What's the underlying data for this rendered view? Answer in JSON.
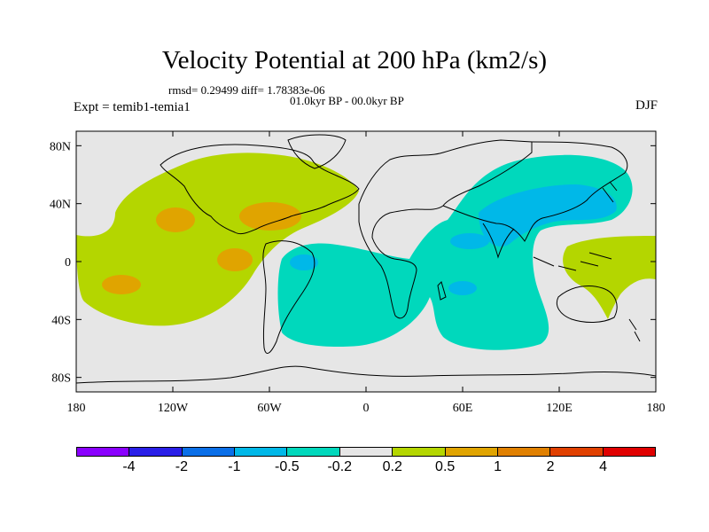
{
  "title": "Velocity Potential at 200 hPa (km2/s)",
  "stats_line": "rmsd= 0.29499 diff= 1.78383e-06",
  "period_line": "01.0kyr BP - 00.0kyr BP",
  "experiment_label": "Expt = temib1-temia1",
  "season_label": "DJF",
  "map": {
    "lon_range": [
      -180,
      180
    ],
    "lat_range": [
      -90,
      90
    ],
    "x_ticks": [
      {
        "lon": -180,
        "label": "180"
      },
      {
        "lon": -120,
        "label": "120W"
      },
      {
        "lon": -60,
        "label": "60W"
      },
      {
        "lon": 0,
        "label": "0"
      },
      {
        "lon": 60,
        "label": "60E"
      },
      {
        "lon": 120,
        "label": "120E"
      },
      {
        "lon": 180,
        "label": "180"
      }
    ],
    "y_ticks": [
      {
        "lat": 80,
        "label": "80N"
      },
      {
        "lat": 40,
        "label": "40N"
      },
      {
        "lat": 0,
        "label": "0"
      },
      {
        "lat": -40,
        "label": "40S"
      },
      {
        "lat": -80,
        "label": "80S"
      }
    ],
    "colors": {
      "neutral": "#e6e6e6",
      "pos_weak": "#b4d600",
      "pos_mid": "#e0a400",
      "neg_weak": "#00d8bc",
      "neg_mid": "#00b8e8",
      "coast": "#000000"
    }
  },
  "colorbar": {
    "colors": [
      "#8a00ff",
      "#2a1fe8",
      "#0a6fe8",
      "#00b8e8",
      "#00d8bc",
      "#e6e6e6",
      "#b4d600",
      "#e0a400",
      "#e08000",
      "#e04000",
      "#e00000"
    ],
    "labels": [
      "-4",
      "-2",
      "-1",
      "-0.5",
      "-0.2",
      "0.2",
      "0.5",
      "1",
      "2",
      "4"
    ]
  }
}
